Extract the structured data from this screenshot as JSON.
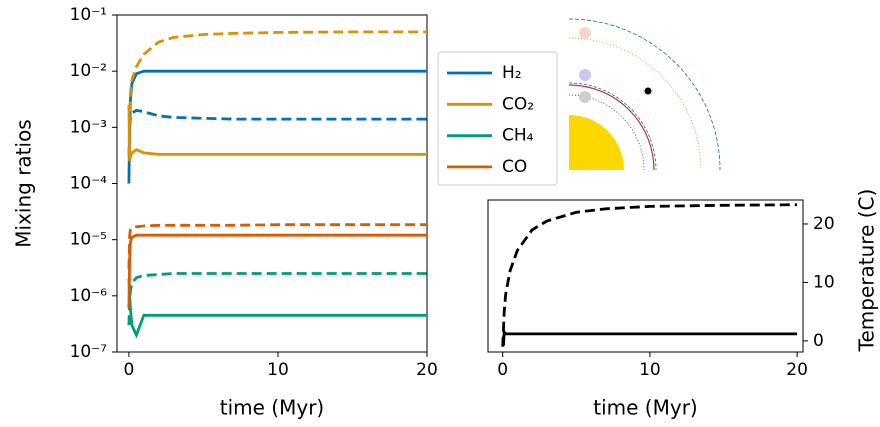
{
  "chart_data": [
    {
      "type": "line",
      "y_label": "Mixing ratios",
      "x_label": "time (Myr)",
      "log_y": true,
      "x": [
        0,
        0.05,
        0.1,
        0.2,
        0.5,
        1,
        2,
        3,
        5,
        7,
        10,
        15,
        20
      ],
      "xlim": [
        -0.8,
        20
      ],
      "xticks": [
        0,
        10,
        20
      ],
      "ylim": [
        1e-07,
        0.1
      ],
      "yticks": [
        {
          "value": 1e-07,
          "label": "10⁻⁷"
        },
        {
          "value": 1e-06,
          "label": "10⁻⁶"
        },
        {
          "value": 1e-05,
          "label": "10⁻⁵"
        },
        {
          "value": 0.0001,
          "label": "10⁻⁴"
        },
        {
          "value": 0.001,
          "label": "10⁻³"
        },
        {
          "value": 0.01,
          "label": "10⁻²"
        },
        {
          "value": 0.1,
          "label": "10⁻¹"
        }
      ],
      "series": [
        {
          "name": "H₂",
          "color": "#0173b2",
          "values": [
            0.0001,
            0.001,
            0.003,
            0.006,
            0.009,
            0.01,
            0.01,
            0.01,
            0.01,
            0.01,
            0.01,
            0.01,
            0.01
          ],
          "dashed_values": [
            0.0003,
            0.001,
            0.0015,
            0.0018,
            0.002,
            0.0019,
            0.0016,
            0.0015,
            0.00145,
            0.0014,
            0.0014,
            0.0014,
            0.0014
          ]
        },
        {
          "name": "CO₂",
          "color": "#de8f05",
          "values": [
            0.0025,
            0.00025,
            0.0003,
            0.00035,
            0.0004,
            0.00035,
            0.00033,
            0.00033,
            0.00033,
            0.00033,
            0.00033,
            0.00033,
            0.00033
          ],
          "dashed_values": [
            0.0003,
            0.002,
            0.004,
            0.007,
            0.012,
            0.02,
            0.033,
            0.04,
            0.045,
            0.047,
            0.049,
            0.05,
            0.05
          ]
        },
        {
          "name": "CH₄",
          "color": "#029e73",
          "values": [
            2e-06,
            1e-06,
            6e-07,
            3e-07,
            2e-07,
            4.5e-07,
            4.5e-07,
            4.5e-07,
            4.5e-07,
            4.5e-07,
            4.5e-07,
            4.5e-07,
            4.5e-07
          ],
          "dashed_values": [
            3e-07,
            8e-07,
            1.2e-06,
            1.7e-06,
            2.1e-06,
            2.3e-06,
            2.4e-06,
            2.5e-06,
            2.5e-06,
            2.5e-06,
            2.5e-06,
            2.5e-06,
            2.5e-06
          ]
        },
        {
          "name": "CO",
          "color": "#d55e00",
          "values": [
            6e-07,
            5e-06,
            9e-06,
            1.1e-05,
            1.2e-05,
            1.2e-05,
            1.2e-05,
            1.2e-05,
            1.2e-05,
            1.2e-05,
            1.2e-05,
            1.2e-05,
            1.2e-05
          ],
          "dashed_values": [
            3e-06,
            1.2e-05,
            1.5e-05,
            1.6e-05,
            1.7e-05,
            1.75e-05,
            1.8e-05,
            1.8e-05,
            1.8e-05,
            1.8e-05,
            1.85e-05,
            1.85e-05,
            1.85e-05
          ]
        }
      ]
    },
    {
      "type": "line",
      "y_label": "Temperature (C)",
      "x_label": "time (Myr)",
      "log_y": false,
      "y_axis_side": "right",
      "x": [
        0,
        0.05,
        0.1,
        0.2,
        0.5,
        1,
        2,
        3,
        5,
        7,
        10,
        15,
        20
      ],
      "xlim": [
        -1,
        20.4
      ],
      "xticks": [
        0,
        10,
        20
      ],
      "ylim": [
        -1.9,
        24.1
      ],
      "yticks": [
        0,
        10,
        20
      ],
      "series": [
        {
          "color": "#000000",
          "values": [
            0,
            -0.8,
            1.5,
            1.2,
            1.2,
            1.2,
            1.2,
            1.2,
            1.2,
            1.2,
            1.2,
            1.2,
            1.2
          ],
          "dashed_values": [
            -1,
            2,
            5,
            8,
            12,
            15.5,
            19,
            20.5,
            22,
            22.6,
            23,
            23.2,
            23.3
          ]
        }
      ]
    }
  ]
}
